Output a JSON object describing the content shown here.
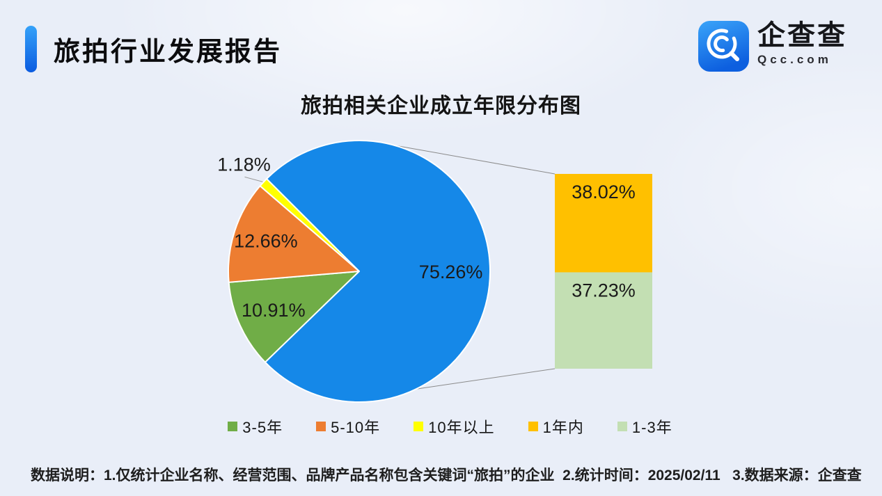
{
  "page": {
    "report_title": "旅拍行业发展报告"
  },
  "logo": {
    "name": "企查查",
    "domain": "Qcc.com",
    "icon": "magnifier-c-icon"
  },
  "chart_data": {
    "type": "bar-of-pie",
    "title": "旅拍相关企业成立年限分布图",
    "unit": "%",
    "pie": {
      "start_angle_cw_from_top": 225.9,
      "slices": [
        {
          "label": "3-5年",
          "value": 10.91,
          "display": "10.91%",
          "color": "#70AD47",
          "label_placement": "inside"
        },
        {
          "label": "5-10年",
          "value": 12.66,
          "display": "12.66%",
          "color": "#ED7D31",
          "label_placement": "inside"
        },
        {
          "label": "10年以上",
          "value": 1.18,
          "display": "1.18%",
          "color": "#FFFF00",
          "label_placement": "outside"
        },
        {
          "label": "",
          "value": 75.26,
          "display": "75.26%",
          "color": "#1588E8",
          "label_placement": "inside",
          "breakout": true
        }
      ]
    },
    "breakout_bar": {
      "segments": [
        {
          "label": "1年内",
          "value": 38.02,
          "display": "38.02%",
          "color": "#FFC000"
        },
        {
          "label": "1-3年",
          "value": 37.23,
          "display": "37.23%",
          "color": "#C3DFB3"
        }
      ]
    },
    "legend": [
      {
        "label": "3-5年",
        "color": "#70AD47"
      },
      {
        "label": "5-10年",
        "color": "#ED7D31"
      },
      {
        "label": "10年以上",
        "color": "#FFFF00"
      },
      {
        "label": "1年内",
        "color": "#FFC000"
      },
      {
        "label": "1-3年",
        "color": "#C3DFB3"
      }
    ],
    "legend_position": "bottom"
  },
  "footer": {
    "note": "数据说明：1.仅统计企业名称、经营范围、品牌产品名称包含关键词“旅拍”的企业  2.统计时间：2025/02/11   3.数据来源：企查查"
  },
  "colors": {
    "background": "#e9eef8",
    "accent_bar_top": "#35a2f9",
    "accent_bar_bottom": "#0a5be0",
    "connector_line": "#8a8a8a",
    "label_text": "#1a1a1a"
  }
}
